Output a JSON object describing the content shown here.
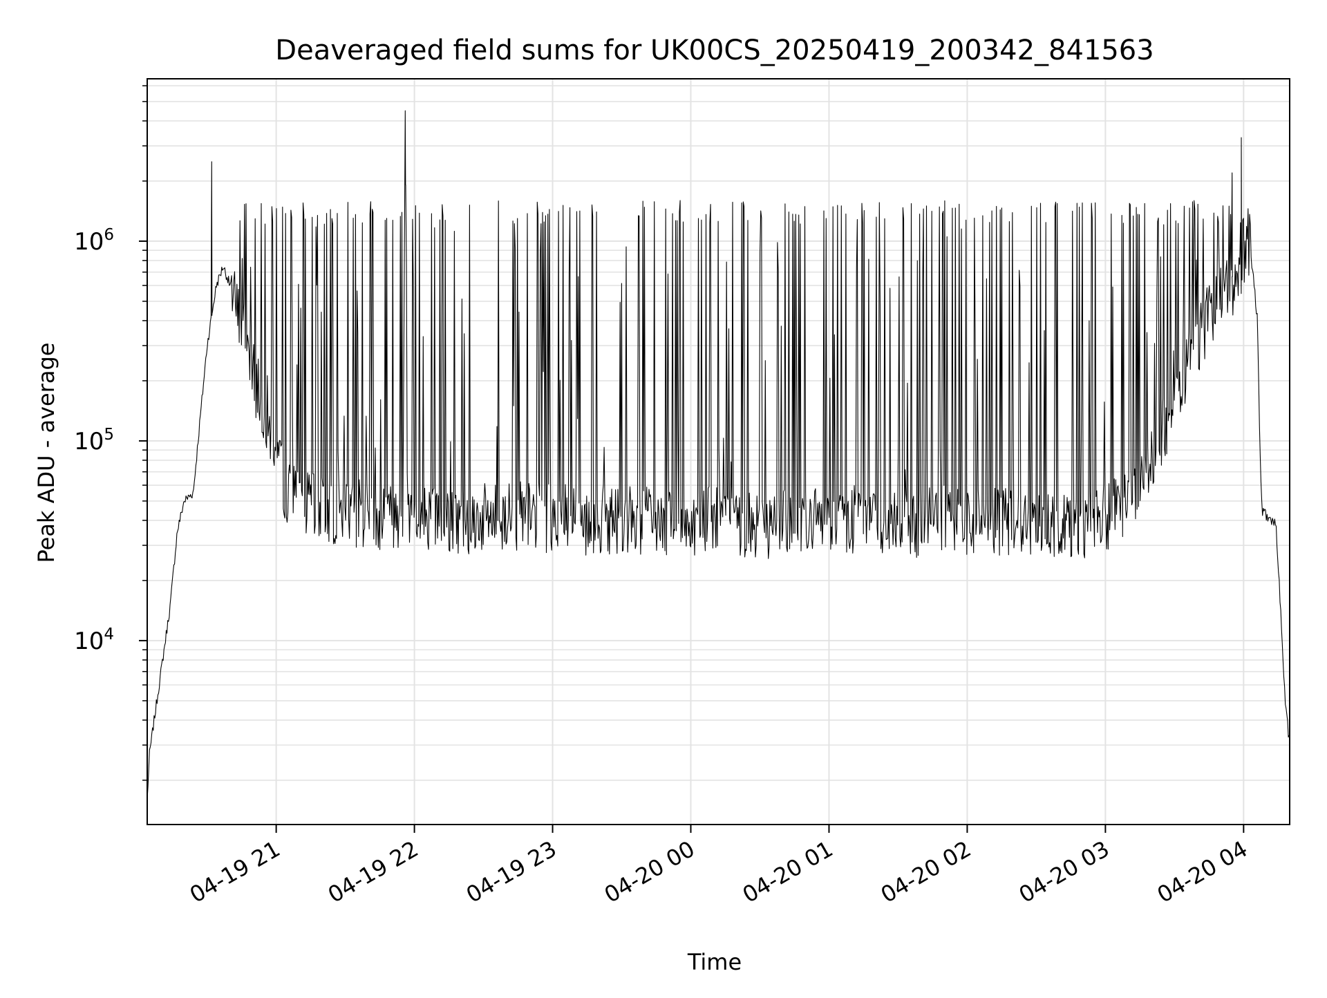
{
  "chart_data": {
    "type": "line",
    "title": "Deaveraged field sums for UK00CS_20250419_200342_841563",
    "xlabel": "Time",
    "ylabel": "Peak ADU - average",
    "yscale": "log",
    "grid": true,
    "grid_minor": true,
    "legend": "none",
    "line_color": "#000000",
    "grid_color": "#e3e3e3",
    "xlim": [
      "2025-04-19 20:04",
      "2025-04-20 04:20"
    ],
    "ylim": [
      1200,
      6500000
    ],
    "x_ticks": [
      {
        "t": "2025-04-19 21:00",
        "label": "04-19 21"
      },
      {
        "t": "2025-04-19 22:00",
        "label": "04-19 22"
      },
      {
        "t": "2025-04-19 23:00",
        "label": "04-19 23"
      },
      {
        "t": "2025-04-20 00:00",
        "label": "04-20 00"
      },
      {
        "t": "2025-04-20 01:00",
        "label": "04-20 01"
      },
      {
        "t": "2025-04-20 02:00",
        "label": "04-20 02"
      },
      {
        "t": "2025-04-20 03:00",
        "label": "04-20 03"
      },
      {
        "t": "2025-04-20 04:00",
        "label": "04-20 04"
      }
    ],
    "y_ticks": [
      {
        "value": 10000,
        "base": "10",
        "exp": "4"
      },
      {
        "value": 100000,
        "base": "10",
        "exp": "5"
      },
      {
        "value": 1000000,
        "base": "10",
        "exp": "6"
      }
    ],
    "series": [
      {
        "x": [
          "2025-04-19 20:04",
          "2025-04-19 20:05",
          "2025-04-19 20:07",
          "2025-04-19 20:10",
          "2025-04-19 20:14",
          "2025-04-19 20:17",
          "2025-04-19 20:20",
          "2025-04-19 20:24",
          "2025-04-19 20:27",
          "2025-04-19 20:30",
          "2025-04-19 20:34",
          "2025-04-19 20:37",
          "2025-04-19 20:40",
          "2025-04-19 20:44",
          "2025-04-19 20:48",
          "2025-04-19 20:50",
          "2025-04-19 20:51",
          "2025-04-19 20:52",
          "2025-04-19 20:53",
          "2025-04-19 20:56",
          "2025-04-19 20:58",
          "2025-04-19 21:00",
          "2025-04-19 21:02",
          "2025-04-19 21:05",
          "2025-04-19 21:08",
          "2025-04-19 21:12",
          "2025-04-19 21:15",
          "2025-04-19 21:20",
          "2025-04-19 21:30",
          "2025-04-19 21:40",
          "2025-04-19 21:50",
          "2025-04-19 21:55",
          "2025-04-19 21:56",
          "2025-04-19 21:57",
          "2025-04-19 22:00",
          "2025-04-19 22:10",
          "2025-04-19 22:20",
          "2025-04-19 22:30",
          "2025-04-19 22:40",
          "2025-04-19 22:50",
          "2025-04-19 23:00",
          "2025-04-19 23:10",
          "2025-04-19 23:20",
          "2025-04-19 23:30",
          "2025-04-19 23:40",
          "2025-04-19 23:50",
          "2025-04-20 00:00",
          "2025-04-20 00:10",
          "2025-04-20 00:20",
          "2025-04-20 00:30",
          "2025-04-20 00:40",
          "2025-04-20 00:50",
          "2025-04-20 01:00",
          "2025-04-20 01:10",
          "2025-04-20 01:20",
          "2025-04-20 01:30",
          "2025-04-20 01:40",
          "2025-04-20 01:50",
          "2025-04-20 02:00",
          "2025-04-20 02:10",
          "2025-04-20 02:20",
          "2025-04-20 02:30",
          "2025-04-20 02:40",
          "2025-04-20 02:50",
          "2025-04-20 03:00",
          "2025-04-20 03:05",
          "2025-04-20 03:10",
          "2025-04-20 03:15",
          "2025-04-20 03:20",
          "2025-04-20 03:25",
          "2025-04-20 03:30",
          "2025-04-20 03:35",
          "2025-04-20 03:40",
          "2025-04-20 03:45",
          "2025-04-20 03:50",
          "2025-04-20 03:52",
          "2025-04-20 03:55",
          "2025-04-20 03:58",
          "2025-04-20 04:00",
          "2025-04-20 04:02",
          "2025-04-20 04:04",
          "2025-04-20 04:06",
          "2025-04-20 04:07",
          "2025-04-20 04:08",
          "2025-04-20 04:10",
          "2025-04-20 04:12",
          "2025-04-20 04:14",
          "2025-04-20 04:16",
          "2025-04-20 04:18",
          "2025-04-20 04:20"
        ],
        "y": [
          1600,
          2700,
          4000,
          7000,
          15000,
          35000,
          50000,
          55000,
          130000,
          300000,
          600000,
          750000,
          600000,
          400000,
          300000,
          250000,
          180000,
          210000,
          160000,
          130000,
          100000,
          85000,
          70000,
          55000,
          50000,
          48000,
          46000,
          45000,
          44000,
          43000,
          42000,
          45000,
          4500000,
          43000,
          42000,
          41000,
          40000,
          41000,
          42000,
          42000,
          41000,
          40000,
          40000,
          41000,
          40000,
          39000,
          39000,
          40000,
          39000,
          38000,
          38000,
          39000,
          40000,
          40000,
          40000,
          39000,
          39000,
          40000,
          40000,
          39000,
          39000,
          38000,
          38000,
          38000,
          41000,
          44000,
          50000,
          60000,
          80000,
          110000,
          160000,
          230000,
          320000,
          420000,
          520000,
          560000,
          600000,
          660000,
          750000,
          1000000,
          700000,
          400000,
          100000,
          45000,
          42000,
          40000,
          38000,
          15000,
          5000,
          3000
        ]
      }
    ],
    "spikes_upper": [
      {
        "t": "2025-04-19 20:32",
        "y": 2500000
      },
      {
        "t": "2025-04-19 21:56",
        "y": 4500000
      },
      {
        "t": "2025-04-20 03:55",
        "y": 2200000
      },
      {
        "t": "2025-04-20 03:59",
        "y": 3300000
      }
    ],
    "upper_envelope": 1400000,
    "lower_envelope": 30000
  }
}
